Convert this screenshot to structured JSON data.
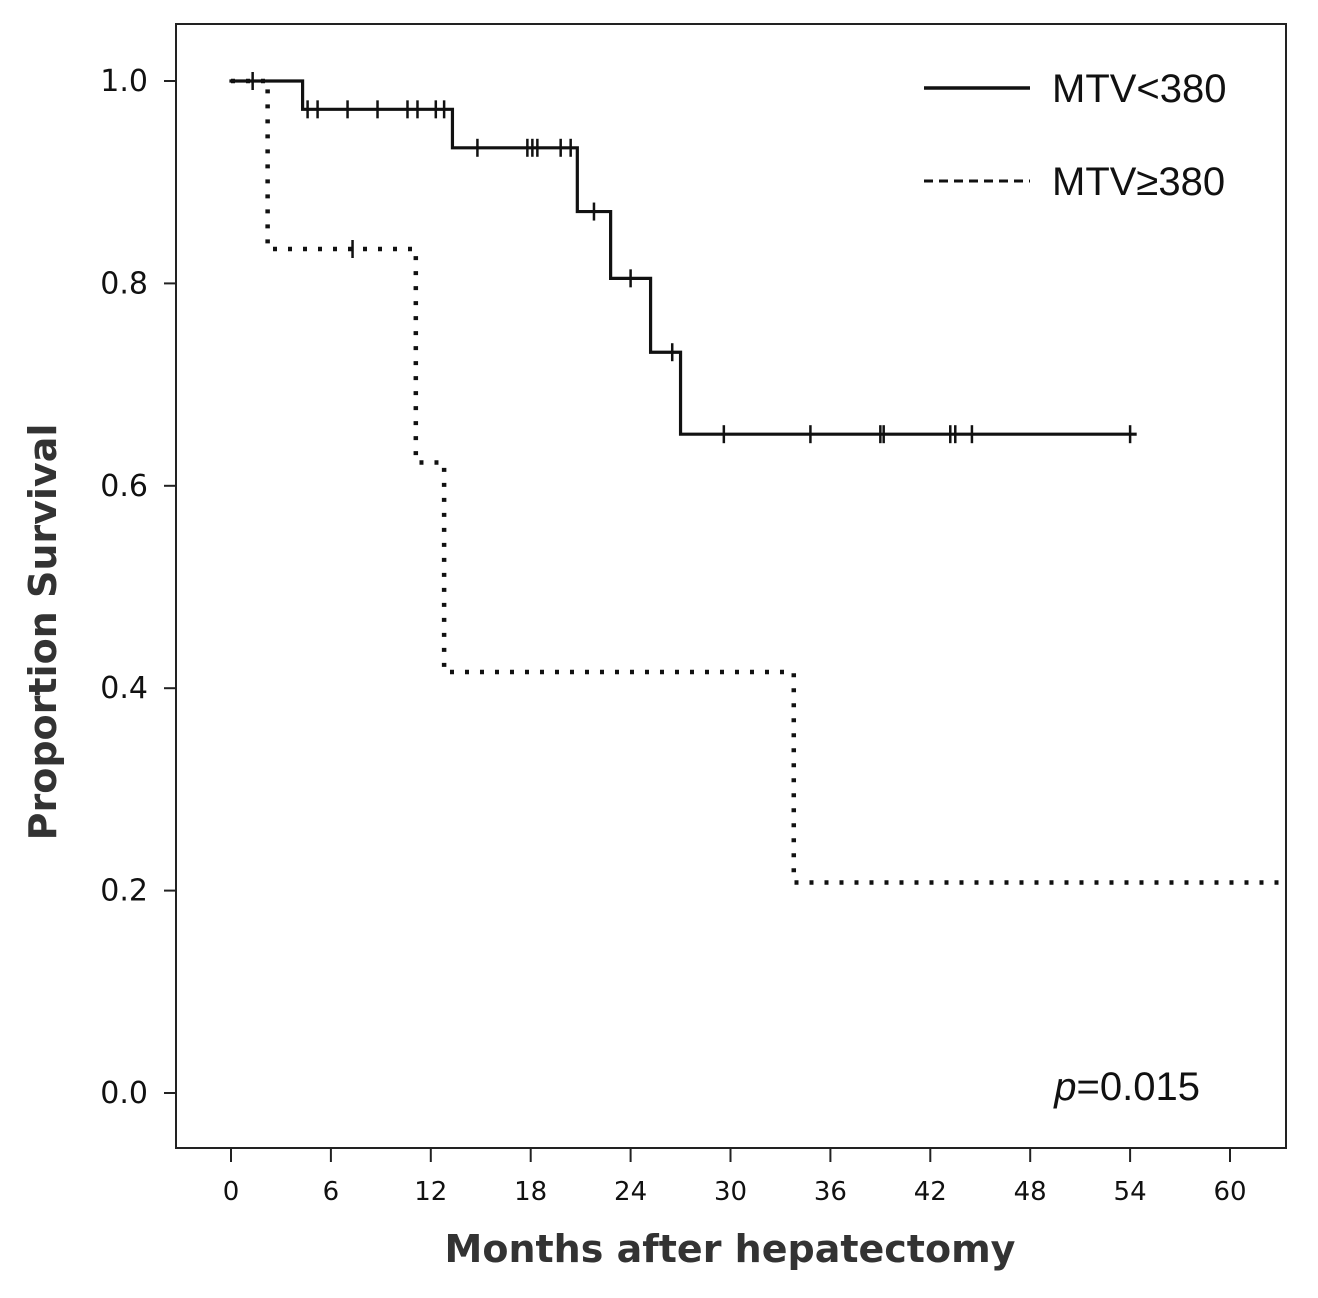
{
  "chart_data": {
    "type": "line",
    "subtype": "kaplan-meier",
    "title": "",
    "xlabel": "Months after hepatectomy",
    "ylabel": "Proportion Survival",
    "xlim": [
      -7,
      63.5
    ],
    "ylim": [
      -0.055,
      1.055
    ],
    "xticks": [
      0,
      6,
      12,
      18,
      24,
      30,
      36,
      42,
      48,
      54,
      60
    ],
    "yticks": [
      0.0,
      0.2,
      0.4,
      0.6,
      0.8,
      1.0
    ],
    "ytick_labels": [
      "0.0",
      "0.2",
      "0.4",
      "0.6",
      "0.8",
      "1.0"
    ],
    "grid": false,
    "legend_position": "top-right",
    "annotation": {
      "p_italic": "p",
      "p_rest": "=0.015"
    },
    "series": [
      {
        "name": "MTV<380",
        "line_style": "solid",
        "color": "#111111",
        "steps": [
          [
            0,
            1.0
          ],
          [
            4.3,
            0.972
          ],
          [
            13.3,
            0.934
          ],
          [
            20.8,
            0.871
          ],
          [
            22.8,
            0.805
          ],
          [
            25.2,
            0.732
          ],
          [
            27.0,
            0.651
          ],
          [
            54.3,
            0.651
          ]
        ],
        "censored": [
          [
            1.3,
            1.0
          ],
          [
            4.6,
            0.972
          ],
          [
            5.2,
            0.972
          ],
          [
            7.0,
            0.972
          ],
          [
            8.8,
            0.972
          ],
          [
            10.6,
            0.972
          ],
          [
            11.2,
            0.972
          ],
          [
            12.3,
            0.972
          ],
          [
            12.8,
            0.972
          ],
          [
            14.8,
            0.934
          ],
          [
            17.8,
            0.934
          ],
          [
            18.1,
            0.934
          ],
          [
            18.4,
            0.934
          ],
          [
            19.8,
            0.934
          ],
          [
            20.4,
            0.934
          ],
          [
            21.8,
            0.871
          ],
          [
            24.0,
            0.805
          ],
          [
            26.5,
            0.732
          ],
          [
            29.6,
            0.651
          ],
          [
            34.8,
            0.651
          ],
          [
            39.0,
            0.651
          ],
          [
            39.2,
            0.651
          ],
          [
            43.2,
            0.651
          ],
          [
            43.5,
            0.651
          ],
          [
            44.5,
            0.651
          ],
          [
            54.0,
            0.651
          ]
        ]
      },
      {
        "name": "MTV≥380",
        "line_style": "dotted",
        "color": "#111111",
        "steps": [
          [
            0,
            1.0
          ],
          [
            2.2,
            0.834
          ],
          [
            11.1,
            0.623
          ],
          [
            12.8,
            0.416
          ],
          [
            33.8,
            0.208
          ],
          [
            63.5,
            0.208
          ]
        ],
        "censored": [
          [
            7.3,
            0.834
          ]
        ]
      }
    ]
  }
}
